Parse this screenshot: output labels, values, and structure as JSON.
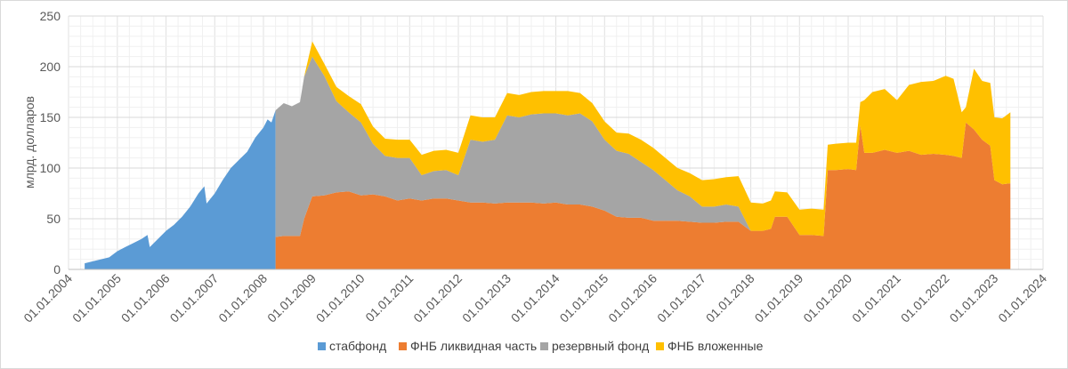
{
  "chart_data": {
    "type": "area",
    "title": "",
    "xlabel": "",
    "ylabel": "млрд. долларов",
    "ylim": [
      0,
      250
    ],
    "xlim": [
      "2004-01-01",
      "2024-01-01"
    ],
    "y_ticks": [
      "0",
      "50",
      "100",
      "150",
      "200",
      "250"
    ],
    "x_ticks": [
      "01.01.2004",
      "01.01.2005",
      "01.01.2006",
      "01.01.2007",
      "01.01.2008",
      "01.01.2009",
      "01.01.2010",
      "01.01.2011",
      "01.01.2012",
      "01.01.2013",
      "01.01.2014",
      "01.01.2015",
      "01.01.2016",
      "01.01.2017",
      "01.01.2018",
      "01.01.2019",
      "01.01.2020",
      "01.01.2021",
      "01.01.2022",
      "01.01.2023",
      "01.01.2024"
    ],
    "stacked": true,
    "grid": "vertical and horizontal, light",
    "legend_position": "bottom",
    "series": [
      {
        "name": "стабфонд",
        "color": "#5b9bd5",
        "points": [
          [
            "2004-05-01",
            6
          ],
          [
            "2004-07-01",
            8
          ],
          [
            "2004-09-01",
            10
          ],
          [
            "2004-11-01",
            12
          ],
          [
            "2005-01-01",
            18
          ],
          [
            "2005-03-01",
            22
          ],
          [
            "2005-05-01",
            26
          ],
          [
            "2005-07-01",
            30
          ],
          [
            "2005-08-15",
            34
          ],
          [
            "2005-09-01",
            22
          ],
          [
            "2005-11-01",
            30
          ],
          [
            "2006-01-01",
            38
          ],
          [
            "2006-03-01",
            44
          ],
          [
            "2006-05-01",
            52
          ],
          [
            "2006-07-01",
            62
          ],
          [
            "2006-09-01",
            75
          ],
          [
            "2006-10-15",
            82
          ],
          [
            "2006-11-01",
            65
          ],
          [
            "2007-01-01",
            75
          ],
          [
            "2007-03-01",
            88
          ],
          [
            "2007-05-01",
            100
          ],
          [
            "2007-07-01",
            108
          ],
          [
            "2007-09-01",
            116
          ],
          [
            "2007-11-01",
            130
          ],
          [
            "2008-01-01",
            140
          ],
          [
            "2008-02-01",
            148
          ],
          [
            "2008-03-01",
            145
          ],
          [
            "2008-04-01",
            157
          ]
        ]
      },
      {
        "name": "ФНБ ликвидная часть",
        "color": "#ed7d31",
        "points": [
          [
            "2008-04-01",
            32
          ],
          [
            "2008-06-01",
            33
          ],
          [
            "2008-08-01",
            33
          ],
          [
            "2008-10-01",
            33
          ],
          [
            "2008-11-01",
            50
          ],
          [
            "2009-01-01",
            72
          ],
          [
            "2009-04-01",
            73
          ],
          [
            "2009-07-01",
            76
          ],
          [
            "2009-10-01",
            77
          ],
          [
            "2010-01-01",
            73
          ],
          [
            "2010-04-01",
            74
          ],
          [
            "2010-07-01",
            72
          ],
          [
            "2010-10-01",
            68
          ],
          [
            "2011-01-01",
            70
          ],
          [
            "2011-04-01",
            68
          ],
          [
            "2011-07-01",
            70
          ],
          [
            "2011-10-01",
            70
          ],
          [
            "2012-01-01",
            68
          ],
          [
            "2012-04-01",
            66
          ],
          [
            "2012-07-01",
            66
          ],
          [
            "2012-10-01",
            65
          ],
          [
            "2013-01-01",
            66
          ],
          [
            "2013-04-01",
            66
          ],
          [
            "2013-07-01",
            66
          ],
          [
            "2013-10-01",
            65
          ],
          [
            "2014-01-01",
            66
          ],
          [
            "2014-04-01",
            64
          ],
          [
            "2014-07-01",
            64
          ],
          [
            "2014-10-01",
            62
          ],
          [
            "2015-01-01",
            58
          ],
          [
            "2015-04-01",
            52
          ],
          [
            "2015-07-01",
            51
          ],
          [
            "2015-10-01",
            51
          ],
          [
            "2016-01-01",
            48
          ],
          [
            "2016-04-01",
            48
          ],
          [
            "2016-07-01",
            48
          ],
          [
            "2016-10-01",
            47
          ],
          [
            "2017-01-01",
            46
          ],
          [
            "2017-04-01",
            46
          ],
          [
            "2017-07-01",
            47
          ],
          [
            "2017-10-01",
            47
          ],
          [
            "2018-01-01",
            38
          ],
          [
            "2018-04-01",
            38
          ],
          [
            "2018-06-01",
            40
          ],
          [
            "2018-07-01",
            52
          ],
          [
            "2018-10-01",
            52
          ],
          [
            "2019-01-01",
            34
          ],
          [
            "2019-04-01",
            34
          ],
          [
            "2019-07-01",
            33
          ],
          [
            "2019-08-01",
            98
          ],
          [
            "2019-10-01",
            98
          ],
          [
            "2020-01-01",
            99
          ],
          [
            "2020-03-01",
            98
          ],
          [
            "2020-04-01",
            142
          ],
          [
            "2020-05-01",
            115
          ],
          [
            "2020-07-01",
            115
          ],
          [
            "2020-10-01",
            118
          ],
          [
            "2021-01-01",
            115
          ],
          [
            "2021-04-01",
            117
          ],
          [
            "2021-07-01",
            113
          ],
          [
            "2021-10-01",
            114
          ],
          [
            "2022-01-01",
            113
          ],
          [
            "2022-03-01",
            112
          ],
          [
            "2022-05-01",
            110
          ],
          [
            "2022-06-01",
            145
          ],
          [
            "2022-08-01",
            138
          ],
          [
            "2022-10-01",
            128
          ],
          [
            "2022-12-01",
            122
          ],
          [
            "2023-01-01",
            88
          ],
          [
            "2023-03-01",
            84
          ],
          [
            "2023-05-01",
            85
          ]
        ]
      },
      {
        "name": "резервный фонд",
        "color": "#a5a5a5",
        "points": [
          [
            "2008-04-01",
            125
          ],
          [
            "2008-06-01",
            131
          ],
          [
            "2008-08-01",
            128
          ],
          [
            "2008-10-01",
            132
          ],
          [
            "2008-11-01",
            140
          ],
          [
            "2009-01-01",
            138
          ],
          [
            "2009-04-01",
            118
          ],
          [
            "2009-07-01",
            90
          ],
          [
            "2009-10-01",
            78
          ],
          [
            "2010-01-01",
            72
          ],
          [
            "2010-04-01",
            50
          ],
          [
            "2010-07-01",
            40
          ],
          [
            "2010-10-01",
            42
          ],
          [
            "2011-01-01",
            40
          ],
          [
            "2011-04-01",
            25
          ],
          [
            "2011-07-01",
            27
          ],
          [
            "2011-10-01",
            28
          ],
          [
            "2012-01-01",
            25
          ],
          [
            "2012-04-01",
            62
          ],
          [
            "2012-07-01",
            60
          ],
          [
            "2012-10-01",
            63
          ],
          [
            "2013-01-01",
            86
          ],
          [
            "2013-04-01",
            84
          ],
          [
            "2013-07-01",
            87
          ],
          [
            "2013-10-01",
            89
          ],
          [
            "2014-01-01",
            88
          ],
          [
            "2014-04-01",
            88
          ],
          [
            "2014-07-01",
            90
          ],
          [
            "2014-10-01",
            84
          ],
          [
            "2015-01-01",
            70
          ],
          [
            "2015-04-01",
            65
          ],
          [
            "2015-07-01",
            63
          ],
          [
            "2015-10-01",
            55
          ],
          [
            "2016-01-01",
            50
          ],
          [
            "2016-04-01",
            40
          ],
          [
            "2016-07-01",
            30
          ],
          [
            "2016-10-01",
            25
          ],
          [
            "2017-01-01",
            16
          ],
          [
            "2017-04-01",
            16
          ],
          [
            "2017-07-01",
            17
          ],
          [
            "2017-10-01",
            15
          ],
          [
            "2018-01-01",
            0
          ],
          [
            "2018-04-01",
            0
          ],
          [
            "2018-06-01",
            0
          ],
          [
            "2018-07-01",
            0
          ],
          [
            "2018-10-01",
            0
          ],
          [
            "2019-01-01",
            0
          ],
          [
            "2019-04-01",
            0
          ],
          [
            "2019-07-01",
            0
          ],
          [
            "2019-08-01",
            0
          ],
          [
            "2019-10-01",
            0
          ],
          [
            "2020-01-01",
            0
          ],
          [
            "2020-03-01",
            0
          ],
          [
            "2020-04-01",
            0
          ],
          [
            "2020-05-01",
            0
          ],
          [
            "2020-07-01",
            0
          ],
          [
            "2020-10-01",
            0
          ],
          [
            "2021-01-01",
            0
          ],
          [
            "2021-04-01",
            0
          ],
          [
            "2021-07-01",
            0
          ],
          [
            "2021-10-01",
            0
          ],
          [
            "2022-01-01",
            0
          ],
          [
            "2022-03-01",
            0
          ],
          [
            "2022-05-01",
            0
          ],
          [
            "2022-06-01",
            0
          ],
          [
            "2022-08-01",
            0
          ],
          [
            "2022-10-01",
            0
          ],
          [
            "2022-12-01",
            0
          ],
          [
            "2023-01-01",
            0
          ],
          [
            "2023-03-01",
            0
          ],
          [
            "2023-05-01",
            0
          ]
        ]
      },
      {
        "name": "ФНБ вложенные",
        "color": "#ffc000",
        "points": [
          [
            "2008-04-01",
            0
          ],
          [
            "2008-06-01",
            0
          ],
          [
            "2008-08-01",
            0
          ],
          [
            "2008-10-01",
            0
          ],
          [
            "2008-11-01",
            0
          ],
          [
            "2009-01-01",
            15
          ],
          [
            "2009-04-01",
            12
          ],
          [
            "2009-07-01",
            14
          ],
          [
            "2009-10-01",
            16
          ],
          [
            "2010-01-01",
            18
          ],
          [
            "2010-04-01",
            17
          ],
          [
            "2010-07-01",
            17
          ],
          [
            "2010-10-01",
            18
          ],
          [
            "2011-01-01",
            18
          ],
          [
            "2011-04-01",
            20
          ],
          [
            "2011-07-01",
            20
          ],
          [
            "2011-10-01",
            20
          ],
          [
            "2012-01-01",
            22
          ],
          [
            "2012-04-01",
            24
          ],
          [
            "2012-07-01",
            24
          ],
          [
            "2012-10-01",
            22
          ],
          [
            "2013-01-01",
            22
          ],
          [
            "2013-04-01",
            22
          ],
          [
            "2013-07-01",
            22
          ],
          [
            "2013-10-01",
            22
          ],
          [
            "2014-01-01",
            22
          ],
          [
            "2014-04-01",
            24
          ],
          [
            "2014-07-01",
            20
          ],
          [
            "2014-10-01",
            18
          ],
          [
            "2015-01-01",
            18
          ],
          [
            "2015-04-01",
            18
          ],
          [
            "2015-07-01",
            20
          ],
          [
            "2015-10-01",
            22
          ],
          [
            "2016-01-01",
            22
          ],
          [
            "2016-04-01",
            22
          ],
          [
            "2016-07-01",
            22
          ],
          [
            "2016-10-01",
            23
          ],
          [
            "2017-01-01",
            26
          ],
          [
            "2017-04-01",
            27
          ],
          [
            "2017-07-01",
            27
          ],
          [
            "2017-10-01",
            30
          ],
          [
            "2018-01-01",
            28
          ],
          [
            "2018-04-01",
            27
          ],
          [
            "2018-06-01",
            28
          ],
          [
            "2018-07-01",
            25
          ],
          [
            "2018-10-01",
            24
          ],
          [
            "2019-01-01",
            25
          ],
          [
            "2019-04-01",
            26
          ],
          [
            "2019-07-01",
            26
          ],
          [
            "2019-08-01",
            25
          ],
          [
            "2019-10-01",
            26
          ],
          [
            "2020-01-01",
            26
          ],
          [
            "2020-03-01",
            27
          ],
          [
            "2020-04-01",
            23
          ],
          [
            "2020-05-01",
            52
          ],
          [
            "2020-07-01",
            60
          ],
          [
            "2020-10-01",
            60
          ],
          [
            "2021-01-01",
            52
          ],
          [
            "2021-04-01",
            65
          ],
          [
            "2021-07-01",
            72
          ],
          [
            "2021-10-01",
            72
          ],
          [
            "2022-01-01",
            78
          ],
          [
            "2022-03-01",
            76
          ],
          [
            "2022-05-01",
            45
          ],
          [
            "2022-06-01",
            15
          ],
          [
            "2022-08-01",
            60
          ],
          [
            "2022-10-01",
            58
          ],
          [
            "2022-12-01",
            62
          ],
          [
            "2023-01-01",
            62
          ],
          [
            "2023-03-01",
            65
          ],
          [
            "2023-05-01",
            70
          ]
        ]
      }
    ]
  }
}
